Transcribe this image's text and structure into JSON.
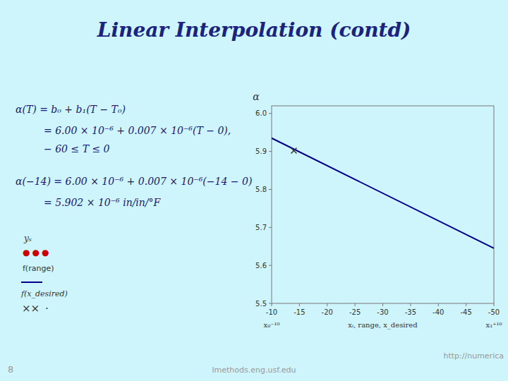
{
  "chart_data": {
    "type": "line",
    "title": "Linear Interpolation (contd)",
    "ylabel": "α",
    "xlim": [
      -10,
      -50
    ],
    "ylim": [
      5.5,
      6.02
    ],
    "xticks": [
      -10,
      -15,
      -20,
      -25,
      -30,
      -35,
      -40,
      -45,
      -50
    ],
    "yticks": [
      5.5,
      5.6,
      5.7,
      5.8,
      5.9,
      {
        "value": 6.0,
        "label": "6.0"
      }
    ],
    "series": [
      {
        "type": "line",
        "color": "#00008B",
        "x": [
          -10,
          -50
        ],
        "values": [
          5.935,
          5.645
        ]
      },
      {
        "type": "scatter",
        "marker": "x",
        "color": "#333333",
        "x": [
          -14
        ],
        "values": [
          5.902
        ]
      }
    ],
    "annotations": [
      {
        "text": "α(T) = b₀ + b₁(T − T₀)",
        "color": "#1a1a6e"
      },
      {
        "text": "= 6.00 × 10⁻⁶ + 0.007 × 10⁻⁶(T − 0),",
        "color": "#1a1a6e"
      },
      {
        "text": "− 60 ≤ T ≤ 0",
        "color": "#1a1a6e"
      },
      {
        "text": "α(−14) = 6.00 × 10⁻⁶ + 0.007 × 10⁻⁶(−14 − 0)",
        "color": "#1a1a6e"
      },
      {
        "text": "= 5.902 × 10⁻⁶ in/in/°F",
        "color": "#1a1a6e"
      },
      {
        "text": "yₛ"
      },
      {
        "text": "●●●",
        "color": "#cc0000"
      },
      {
        "text": "f(range)"
      },
      {
        "text": "f(x_desired)"
      },
      {
        "text": "××"
      },
      {
        "text": "·"
      },
      {
        "text": "x₀⁻¹⁰",
        "x": -10
      },
      {
        "text": "xᵢ, range, x_desired",
        "x": -30
      },
      {
        "text": "x₁⁺¹⁰",
        "x": -50
      },
      {
        "text": "8"
      },
      {
        "text": "lmethods.eng.usf.edu"
      },
      {
        "text": "http://numerica"
      }
    ]
  }
}
